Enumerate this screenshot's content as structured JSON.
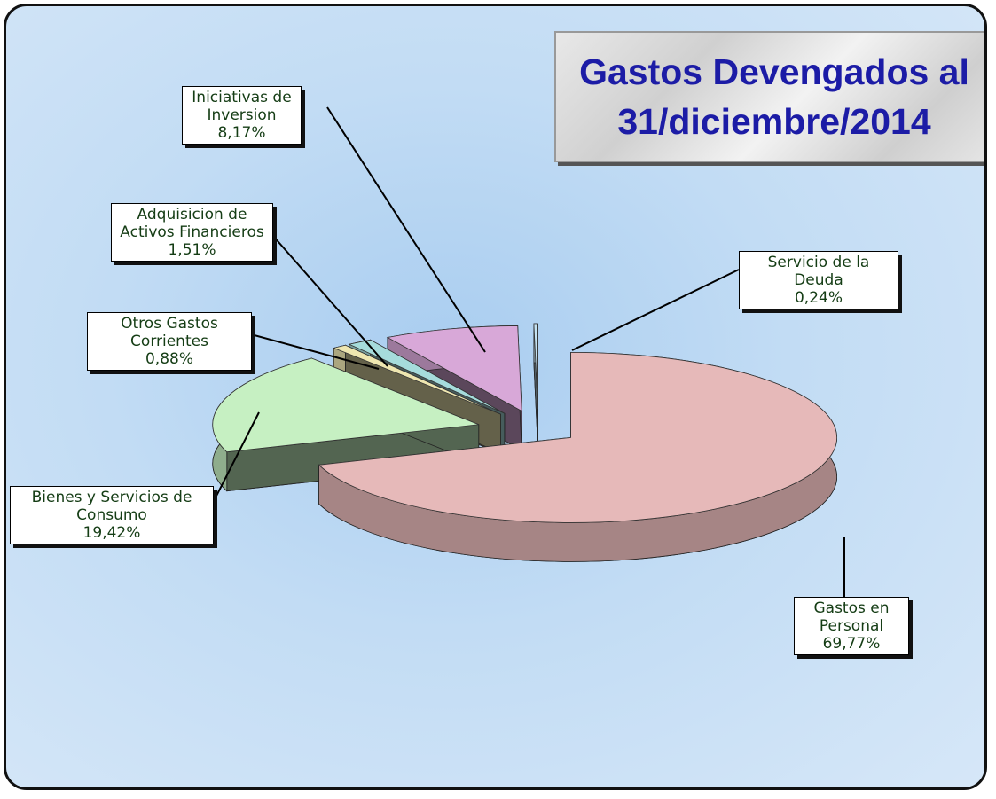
{
  "chart_data": {
    "type": "pie",
    "title": "Gastos Devengados al 31/diciembre/2014",
    "categories": [
      "Gastos en Personal",
      "Bienes y Servicios de Consumo",
      "Otros Gastos Corrientes",
      "Adquisicion de Activos Financieros",
      "Iniciativas de Inversion",
      "Servicio de la Deuda"
    ],
    "values": [
      69.77,
      19.42,
      0.88,
      1.51,
      8.17,
      0.24
    ],
    "value_labels": [
      "69,77%",
      "19,42%",
      "0,88%",
      "1,51%",
      "8,17%",
      "0,24%"
    ],
    "colors": [
      "#e6b9b9",
      "#c6f0c2",
      "#eee6b0",
      "#a6dcdc",
      "#d8a8d8",
      "#c4e2f2"
    ]
  }
}
